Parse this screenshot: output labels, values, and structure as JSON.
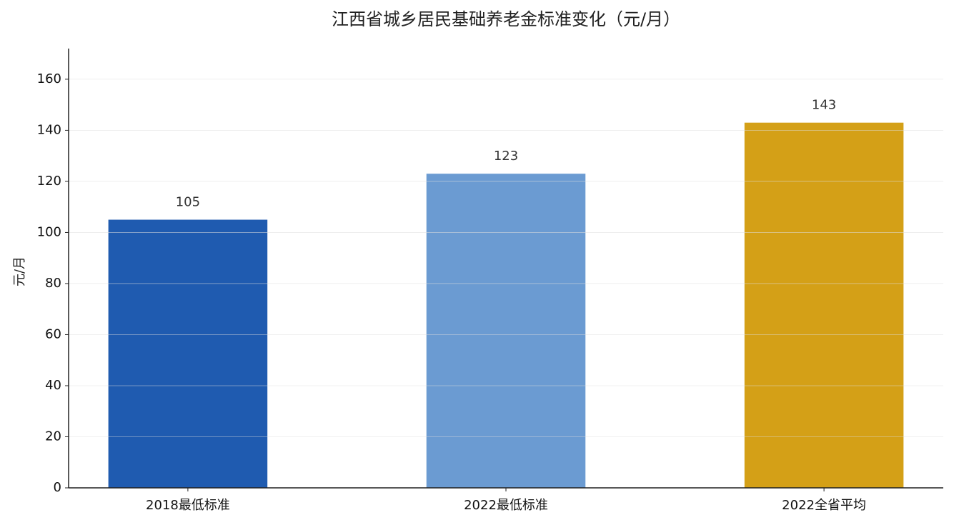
{
  "chart_data": {
    "type": "bar",
    "title": "江西省城乡居民基础养老金标准变化（元/月）",
    "y_label": "元/月",
    "categories": [
      "2018最低标准",
      "2022最低标准",
      "2022全省平均"
    ],
    "values": [
      105,
      123,
      143
    ],
    "colors": [
      "#1f5bb0",
      "#6b9bd2",
      "#d4a017"
    ],
    "ylim": [
      0,
      172
    ],
    "yticks": [
      0,
      20,
      40,
      60,
      80,
      100,
      120,
      140,
      160
    ],
    "grid": true
  }
}
